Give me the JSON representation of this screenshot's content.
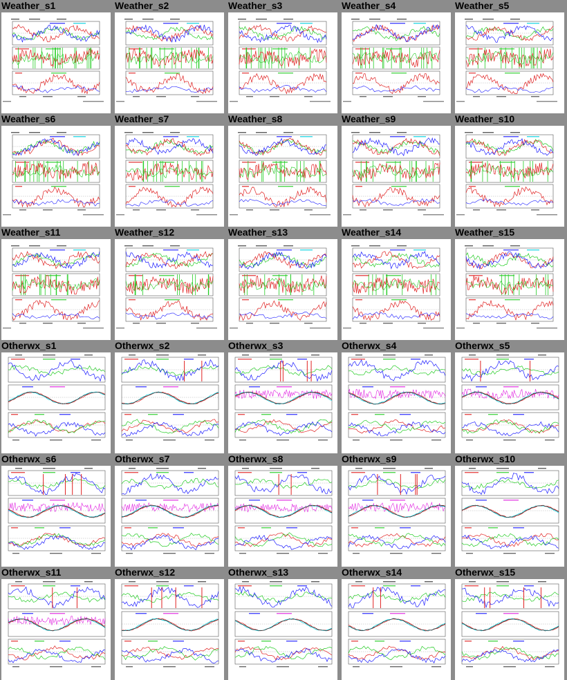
{
  "colors": {
    "page_bg": "#8c8c8c",
    "panel_bg": "#ffffff",
    "blue": "#1a1aff",
    "red": "#e02020",
    "green": "#22cc22",
    "cyan": "#00d0e0",
    "magenta": "#e020e0",
    "black": "#000000"
  },
  "sections": [
    {
      "kind": "weather",
      "thumbs": [
        {
          "title": "Weather_s1"
        },
        {
          "title": "Weather_s2"
        },
        {
          "title": "Weather_s3"
        },
        {
          "title": "Weather_s4"
        },
        {
          "title": "Weather_s5"
        },
        {
          "title": "Weather_s6"
        },
        {
          "title": "Weather_s7"
        },
        {
          "title": "Weather_s8"
        },
        {
          "title": "Weather_s9"
        },
        {
          "title": "Weather_s10"
        },
        {
          "title": "Weather_s11"
        },
        {
          "title": "Weather_s12"
        },
        {
          "title": "Weather_s13"
        },
        {
          "title": "Weather_s14"
        },
        {
          "title": "Weather_s15"
        }
      ]
    },
    {
      "kind": "otherwx",
      "thumbs": [
        {
          "title": "Otherwx_s1"
        },
        {
          "title": "Otherwx_s2"
        },
        {
          "title": "Otherwx_s3"
        },
        {
          "title": "Otherwx_s4"
        },
        {
          "title": "Otherwx_s5"
        },
        {
          "title": "Otherwx_s6"
        },
        {
          "title": "Otherwx_s7"
        },
        {
          "title": "Otherwx_s8"
        },
        {
          "title": "Otherwx_s9"
        },
        {
          "title": "Otherwx_s10"
        },
        {
          "title": "Otherwx_s11"
        },
        {
          "title": "Otherwx_s12"
        },
        {
          "title": "Otherwx_s13"
        },
        {
          "title": "Otherwx_s14"
        },
        {
          "title": "Otherwx_s15"
        }
      ]
    }
  ]
}
